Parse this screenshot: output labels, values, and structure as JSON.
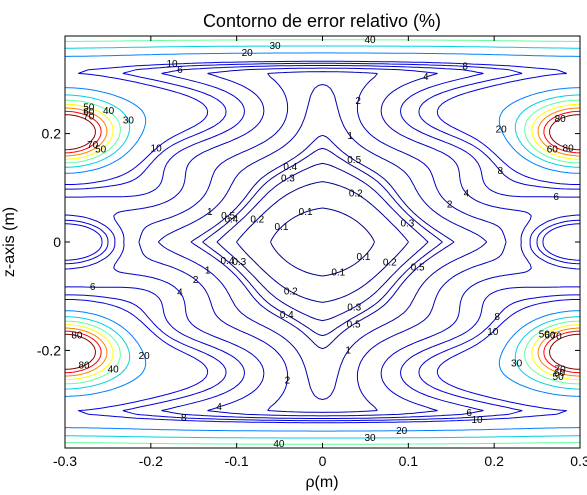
{
  "chart_data": {
    "type": "contour",
    "title": "Contorno de error relativo (%)",
    "xlabel": "ρ(m)",
    "ylabel": "z-axis (m)",
    "xlim": [
      -0.3,
      0.3
    ],
    "ylim": [
      -0.38,
      0.38
    ],
    "x_ticks": [
      {
        "value": -0.3,
        "label": "-0.3"
      },
      {
        "value": -0.2,
        "label": "-0.2"
      },
      {
        "value": -0.1,
        "label": "-0.1"
      },
      {
        "value": 0,
        "label": "0"
      },
      {
        "value": 0.1,
        "label": "0.1"
      },
      {
        "value": 0.2,
        "label": "0.2"
      },
      {
        "value": 0.3,
        "label": "0.3"
      }
    ],
    "y_ticks": [
      {
        "value": -0.2,
        "label": "-0.2"
      },
      {
        "value": 0,
        "label": "0"
      },
      {
        "value": 0.2,
        "label": "0.2"
      }
    ],
    "grid": false,
    "colormap": "jet",
    "levels": [
      {
        "value": 0.1,
        "label": "0.1",
        "color": "#00008f"
      },
      {
        "value": 0.2,
        "label": "0.2",
        "color": "#00008f"
      },
      {
        "value": 0.3,
        "label": "0.3",
        "color": "#000099"
      },
      {
        "value": 0.4,
        "label": "0.4",
        "color": "#000099"
      },
      {
        "value": 0.5,
        "label": "0.5",
        "color": "#0000a3"
      },
      {
        "value": 1,
        "label": "1",
        "color": "#0000ad"
      },
      {
        "value": 2,
        "label": "2",
        "color": "#0000b8"
      },
      {
        "value": 4,
        "label": "4",
        "color": "#0000c2"
      },
      {
        "value": 6,
        "label": "6",
        "color": "#0000cc"
      },
      {
        "value": 8,
        "label": "8",
        "color": "#0000d6"
      },
      {
        "value": 10,
        "label": "10",
        "color": "#0000e0"
      },
      {
        "value": 20,
        "label": "20",
        "color": "#0080ff"
      },
      {
        "value": 30,
        "label": "30",
        "color": "#00d0e0"
      },
      {
        "value": 40,
        "label": "40",
        "color": "#60ff9f"
      },
      {
        "value": 50,
        "label": "50",
        "color": "#ffff00"
      },
      {
        "value": 60,
        "label": "60",
        "color": "#ff8000"
      },
      {
        "value": 70,
        "label": "70",
        "color": "#ff0000"
      },
      {
        "value": 80,
        "label": "80",
        "color": "#800000"
      }
    ]
  }
}
